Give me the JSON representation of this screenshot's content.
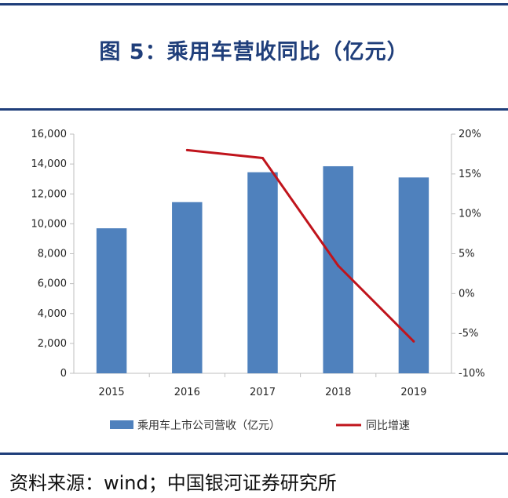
{
  "title": "图 5：乘用车营收同比（亿元）",
  "source": "资料来源：wind；中国银河证券研究所",
  "colors": {
    "bar": "#4f81bd",
    "line": "#c0141c",
    "frame": "#1f3e7a"
  },
  "chart_data": {
    "type": "bar",
    "categories": [
      "2015",
      "2016",
      "2017",
      "2018",
      "2019"
    ],
    "series": [
      {
        "name": "乘用车上市公司营收（亿元）",
        "type": "bar",
        "axis": "left",
        "values": [
          9700,
          11450,
          13450,
          13850,
          13100
        ]
      },
      {
        "name": "同比增速",
        "type": "line",
        "axis": "right",
        "values": [
          null,
          18,
          17,
          3.5,
          -6
        ]
      }
    ],
    "y_left": {
      "ylim": [
        0,
        16000
      ],
      "ticks": [
        0,
        2000,
        4000,
        6000,
        8000,
        10000,
        12000,
        14000,
        16000
      ],
      "tick_labels": [
        "0",
        "2,000",
        "4,000",
        "6,000",
        "8,000",
        "10,000",
        "12,000",
        "14,000",
        "16,000"
      ]
    },
    "y_right": {
      "ylim": [
        -10,
        20
      ],
      "ticks": [
        -10,
        -5,
        0,
        5,
        10,
        15,
        20
      ],
      "tick_labels": [
        "-10%",
        "-5%",
        "0%",
        "5%",
        "10%",
        "15%",
        "20%"
      ]
    },
    "grid": false,
    "legend": "bottom"
  }
}
